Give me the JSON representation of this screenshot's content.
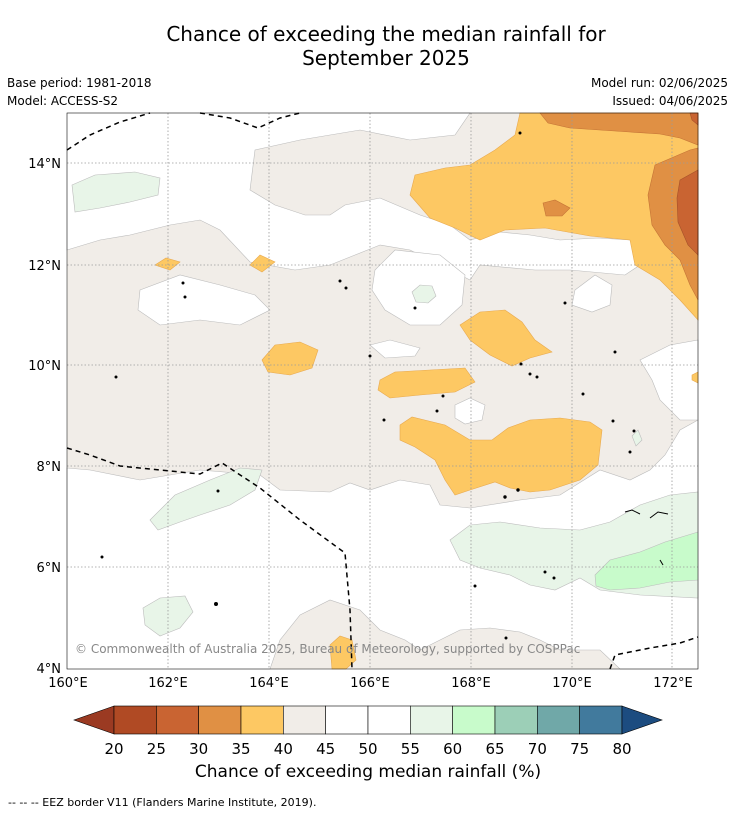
{
  "title": {
    "line1": "Chance of exceeding the median rainfall for",
    "line2": "September 2025"
  },
  "meta": {
    "base_period": "Base period: 1981-2018",
    "model": "Model: ACCESS-S2",
    "model_run": "Model run: 02/06/2025",
    "issued": "Issued: 04/06/2025"
  },
  "map": {
    "lat_labels": [
      "14°N",
      "12°N",
      "10°N",
      "8°N",
      "6°N",
      "4°N"
    ],
    "lon_labels": [
      "160°E",
      "162°E",
      "164°E",
      "166°E",
      "168°E",
      "170°E",
      "172°E"
    ],
    "copyright": "© Commonwealth of Australia 2025, Bureau of Meteorology, supported by COSPPac",
    "lon_range": [
      160,
      172.5
    ],
    "lat_range": [
      3.9,
      15
    ]
  },
  "colorbar": {
    "ticks": [
      "20",
      "25",
      "30",
      "35",
      "40",
      "45",
      "50",
      "55",
      "60",
      "65",
      "70",
      "75",
      "80"
    ],
    "colors": [
      "#9b3a22",
      "#b04a24",
      "#c96432",
      "#e09044",
      "#fdc863",
      "#f1ede8",
      "#ffffff",
      "#ffffff",
      "#e8f5e8",
      "#c8fbcb",
      "#9ccfb7",
      "#70a8a8",
      "#417a9d",
      "#1c4c80"
    ],
    "label": "Chance of exceeding median rainfall (%)"
  },
  "footer": "--  --  -- EEZ border V11 (Flanders Marine Institute, 2019)."
}
